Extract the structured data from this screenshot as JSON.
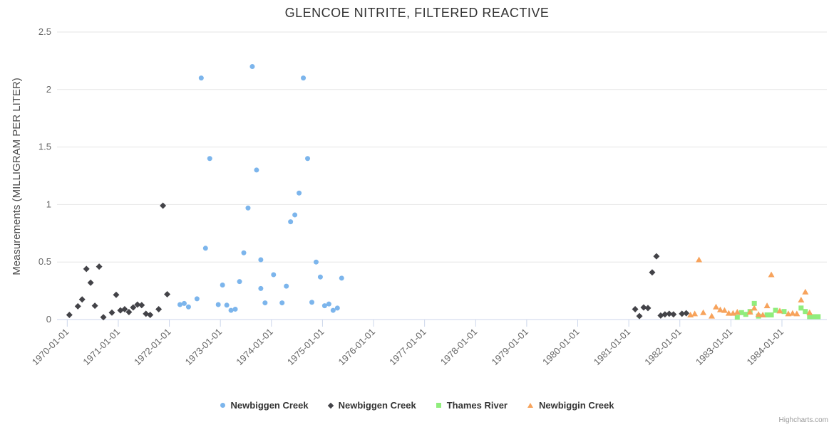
{
  "page": {
    "credits": "Highcharts.com"
  },
  "chart_data": {
    "type": "scatter",
    "title": "GLENCOE NITRITE, FILTERED REACTIVE",
    "xlabel": "",
    "ylabel": "Measurements (MILLIGRAM PER LITER)",
    "ylim": [
      0,
      2.5
    ],
    "yticks": [
      0,
      0.5,
      1,
      1.5,
      2,
      2.5
    ],
    "ytick_labels": [
      "0",
      "0.5",
      "1",
      "1.5",
      "2",
      "2.5"
    ],
    "x_tick_labels": [
      "1970-01-01",
      "1971-01-01",
      "1972-01-01",
      "1973-01-01",
      "1974-01-01",
      "1975-01-01",
      "1976-01-01",
      "1977-01-01",
      "1978-01-01",
      "1979-01-01",
      "1980-01-01",
      "1981-01-01",
      "1982-01-01",
      "1983-01-01",
      "1984-01-01"
    ],
    "xlim_years": [
      1969.8,
      1984.88
    ],
    "grid": true,
    "grid_color": "#e6e6e6",
    "axis_line_color": "#ccd6eb",
    "tick_label_color": "#666666",
    "legend_position": "bottom",
    "series": [
      {
        "name": "Newbiggen Creek",
        "marker": "circle",
        "color": "#7cb5ec",
        "points": [
          [
            "1972-03",
            0.13
          ],
          [
            "1972-04",
            0.14
          ],
          [
            "1972-05",
            0.11
          ],
          [
            "1972-07",
            0.18
          ],
          [
            "1972-08",
            2.1
          ],
          [
            "1972-09",
            0.62
          ],
          [
            "1972-10",
            1.4
          ],
          [
            "1972-12",
            0.13
          ],
          [
            "1973-01",
            0.3
          ],
          [
            "1973-02",
            0.125
          ],
          [
            "1973-03",
            0.08
          ],
          [
            "1973-04",
            0.09
          ],
          [
            "1973-05",
            0.33
          ],
          [
            "1973-06",
            0.58
          ],
          [
            "1973-07",
            0.97
          ],
          [
            "1973-08",
            2.2
          ],
          [
            "1973-09",
            1.3
          ],
          [
            "1973-10",
            0.52
          ],
          [
            "1973-10",
            0.27
          ],
          [
            "1973-11",
            0.145
          ],
          [
            "1974-01",
            0.39
          ],
          [
            "1974-03",
            0.145
          ],
          [
            "1974-04",
            0.29
          ],
          [
            "1974-05",
            0.85
          ],
          [
            "1974-06",
            0.91
          ],
          [
            "1974-07",
            1.1
          ],
          [
            "1974-08",
            2.1
          ],
          [
            "1974-09",
            1.4
          ],
          [
            "1974-10",
            0.15
          ],
          [
            "1974-11",
            0.5
          ],
          [
            "1974-12",
            0.37
          ],
          [
            "1975-01",
            0.12
          ],
          [
            "1975-02",
            0.135
          ],
          [
            "1975-03",
            0.08
          ],
          [
            "1975-04",
            0.1
          ],
          [
            "1975-05",
            0.36
          ]
        ]
      },
      {
        "name": "Newbiggen Creek",
        "marker": "diamond",
        "color": "#434348",
        "points": [
          [
            "1970-01",
            0.04
          ],
          [
            "1970-03",
            0.115
          ],
          [
            "1970-04",
            0.175
          ],
          [
            "1970-05",
            0.44
          ],
          [
            "1970-06",
            0.32
          ],
          [
            "1970-07",
            0.12
          ],
          [
            "1970-08",
            0.46
          ],
          [
            "1970-09",
            0.02
          ],
          [
            "1970-11",
            0.06
          ],
          [
            "1970-12",
            0.215
          ],
          [
            "1971-01",
            0.08
          ],
          [
            "1971-02",
            0.09
          ],
          [
            "1971-03",
            0.065
          ],
          [
            "1971-04",
            0.105
          ],
          [
            "1971-05",
            0.13
          ],
          [
            "1971-06",
            0.125
          ],
          [
            "1971-07",
            0.05
          ],
          [
            "1971-08",
            0.04
          ],
          [
            "1971-10",
            0.09
          ],
          [
            "1971-11",
            0.99
          ],
          [
            "1971-12",
            0.22
          ],
          [
            "1981-02",
            0.09
          ],
          [
            "1981-03",
            0.03
          ],
          [
            "1981-04",
            0.105
          ],
          [
            "1981-05",
            0.1
          ],
          [
            "1981-06",
            0.41
          ],
          [
            "1981-07",
            0.55
          ],
          [
            "1981-08",
            0.035
          ],
          [
            "1981-09",
            0.045
          ],
          [
            "1981-10",
            0.05
          ],
          [
            "1981-11",
            0.045
          ],
          [
            "1982-01",
            0.05
          ],
          [
            "1982-02",
            0.055
          ]
        ]
      },
      {
        "name": "Thames River",
        "marker": "square",
        "color": "#90ed7d",
        "points": [
          [
            "1983-02",
            0.02
          ],
          [
            "1983-03",
            0.06
          ],
          [
            "1983-04",
            0.045
          ],
          [
            "1983-05",
            0.07
          ],
          [
            "1983-06",
            0.14
          ],
          [
            "1983-07",
            0.03
          ],
          [
            "1983-09",
            0.04
          ],
          [
            "1983-10",
            0.04
          ],
          [
            "1983-11",
            0.08
          ],
          [
            "1984-01",
            0.07
          ],
          [
            "1984-05",
            0.1
          ],
          [
            "1984-06",
            0.07
          ],
          [
            "1984-07",
            0.025
          ],
          [
            "1984-08",
            0.025
          ],
          [
            "1984-09",
            0.025
          ]
        ]
      },
      {
        "name": "Newbiggin Creek",
        "marker": "triangle",
        "color": "#f7a35c",
        "points": [
          [
            "1982-03",
            0.04
          ],
          [
            "1982-04",
            0.05
          ],
          [
            "1982-05",
            0.52
          ],
          [
            "1982-06",
            0.06
          ],
          [
            "1982-08",
            0.03
          ],
          [
            "1982-09",
            0.11
          ],
          [
            "1982-10",
            0.085
          ],
          [
            "1982-11",
            0.08
          ],
          [
            "1982-12",
            0.055
          ],
          [
            "1983-01",
            0.055
          ],
          [
            "1983-02",
            0.065
          ],
          [
            "1983-05",
            0.065
          ],
          [
            "1983-06",
            0.1
          ],
          [
            "1983-07",
            0.045
          ],
          [
            "1983-08",
            0.04
          ],
          [
            "1983-09",
            0.12
          ],
          [
            "1983-10",
            0.39
          ],
          [
            "1983-12",
            0.075
          ],
          [
            "1984-02",
            0.05
          ],
          [
            "1984-03",
            0.055
          ],
          [
            "1984-04",
            0.05
          ],
          [
            "1984-05",
            0.17
          ],
          [
            "1984-06",
            0.24
          ],
          [
            "1984-07",
            0.06
          ]
        ]
      }
    ]
  }
}
